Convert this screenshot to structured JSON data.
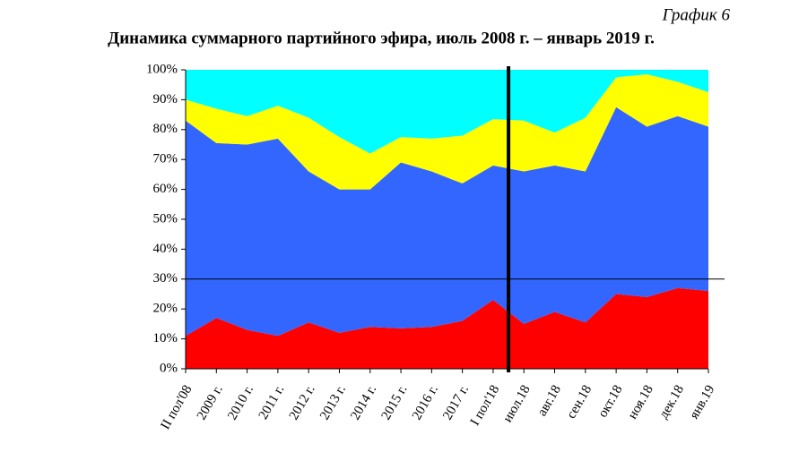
{
  "chart_data": {
    "type": "stacked_area",
    "note": "График 6",
    "title": "Динамика суммарного партийного эфира, июль 2008 г. – январь 2019 г.",
    "categories": [
      "II пол'08",
      "2009 г.",
      "2010 г.",
      "2011 г.",
      "2012 г.",
      "2013 г.",
      "2014 г.",
      "2015 г.",
      "2016 г.",
      "2017 г.",
      "I пол'18",
      "июл.18",
      "авг.18",
      "сен.18",
      "окт.18",
      "ноя.18",
      "дек.18",
      "янв.19"
    ],
    "series": [
      {
        "color": "#ff0000",
        "values": [
          11,
          17,
          13,
          11,
          15.5,
          12,
          14,
          13.5,
          14,
          16,
          23,
          15,
          19,
          15.5,
          25,
          24,
          27,
          26
        ]
      },
      {
        "color": "#3366ff",
        "values": [
          72,
          58.5,
          62,
          66,
          50.5,
          48,
          46,
          55.5,
          52,
          46,
          45,
          51,
          49,
          50.5,
          62.5,
          57,
          57.5,
          55
        ]
      },
      {
        "color": "#ffff00",
        "values": [
          7,
          11.5,
          9.5,
          11,
          18,
          17.5,
          12,
          8.5,
          11,
          16,
          15.5,
          17,
          11,
          18,
          10,
          17.5,
          11.5,
          11.5
        ]
      },
      {
        "color": "#00ffff",
        "values": [
          10,
          13,
          15.5,
          12,
          16,
          22.5,
          28,
          22.5,
          23,
          22,
          16.5,
          17,
          21,
          16,
          2.5,
          1.5,
          4,
          7.5
        ]
      }
    ],
    "ylim": [
      0,
      100
    ],
    "yticks": [
      {
        "value": 0,
        "label": "0%"
      },
      {
        "value": 10,
        "label": "10%"
      },
      {
        "value": 20,
        "label": "20%"
      },
      {
        "value": 30,
        "label": "30%"
      },
      {
        "value": 40,
        "label": "40%"
      },
      {
        "value": 50,
        "label": "50%"
      },
      {
        "value": 60,
        "label": "60%"
      },
      {
        "value": 70,
        "label": "70%"
      },
      {
        "value": 80,
        "label": "80%"
      },
      {
        "value": 90,
        "label": "90%"
      },
      {
        "value": 100,
        "label": "100%"
      }
    ],
    "hline": 30
  }
}
